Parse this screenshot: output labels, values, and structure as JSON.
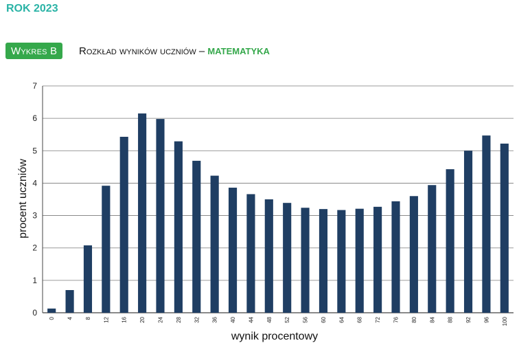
{
  "header": {
    "year": "ROK 2023",
    "badge": "Wykres B",
    "title_main": "Rozkład wyników uczniów – ",
    "title_subject": "MATEMATYKA"
  },
  "colors": {
    "bar": "#1f3e63",
    "accent": "#35a84b",
    "year": "#2ab3a6",
    "grid": "#7a7a7a"
  },
  "chart_data": {
    "type": "bar",
    "xlabel": "wynik procentowy",
    "ylabel": "procent uczniów",
    "ylim": [
      0,
      7
    ],
    "yticks": [
      "0",
      "1",
      "2",
      "3",
      "4",
      "5",
      "6",
      "7"
    ],
    "grid": true,
    "categories": [
      "0",
      "4",
      "8",
      "12",
      "16",
      "20",
      "24",
      "28",
      "32",
      "36",
      "40",
      "44",
      "48",
      "52",
      "56",
      "60",
      "64",
      "68",
      "72",
      "76",
      "80",
      "84",
      "88",
      "92",
      "96",
      "100"
    ],
    "values": [
      0.13,
      0.7,
      2.08,
      3.92,
      5.43,
      6.15,
      5.98,
      5.29,
      4.69,
      4.23,
      3.86,
      3.66,
      3.5,
      3.39,
      3.24,
      3.2,
      3.17,
      3.21,
      3.27,
      3.44,
      3.6,
      3.94,
      4.43,
      5.0,
      5.47,
      5.22
    ]
  }
}
